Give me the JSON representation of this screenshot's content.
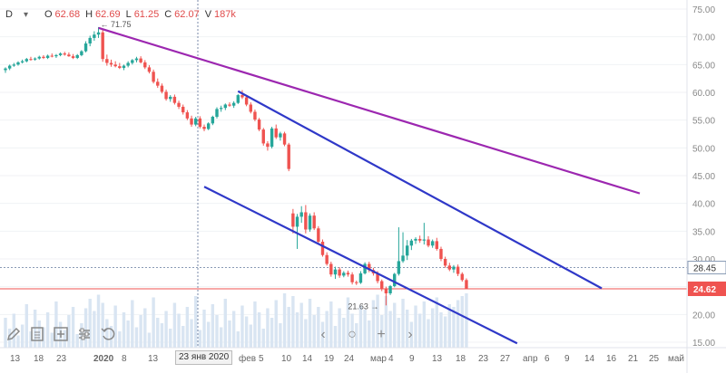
{
  "legend": {
    "symbol": "D",
    "chevron": "chevron-down-icon",
    "open_label": "O",
    "open": "62.68",
    "high_label": "H",
    "high": "62.69",
    "low_label": "L",
    "low": "61.25",
    "close_label": "C",
    "close": "62.07",
    "volume_label": "V",
    "volume": "187k"
  },
  "crosshair_date": "23 янв 2020",
  "toolbar": [
    "pencil-icon",
    "notes-icon",
    "add-indicator-icon",
    "settings-icon",
    "undo-icon"
  ],
  "nav": [
    "chevron-left-icon",
    "reset-icon",
    "zoom-in-icon",
    "chevron-right-icon"
  ],
  "colors": {
    "up": "#26a69a",
    "down": "#ef5350",
    "purple_line": "#9c27b0",
    "channel": "#2f38c8",
    "last_price": "#ef5350",
    "volume": "#d9e5f2"
  },
  "chart_data": {
    "type": "candlestick",
    "ylim": [
      15,
      75
    ],
    "y_ticks": [
      75,
      70,
      65,
      60,
      55,
      50,
      45,
      40,
      35,
      30,
      25,
      20,
      15
    ],
    "x_ticks": [
      "13",
      "18",
      "23",
      "2020",
      "8",
      "13",
      "17",
      "23 янв 2020",
      "фев",
      "5",
      "10",
      "14",
      "19",
      "24",
      "мар",
      "4",
      "9",
      "13",
      "18",
      "23",
      "27",
      "апр",
      "6",
      "9",
      "14",
      "16",
      "21",
      "25",
      "май"
    ],
    "series": [
      {
        "ohlc": [
          [
            64,
            64.5,
            63.5,
            64.3
          ],
          [
            64.3,
            65,
            64,
            64.8
          ],
          [
            64.8,
            65.3,
            64.6,
            65
          ],
          [
            65,
            65.6,
            64.8,
            65.4
          ],
          [
            65.4,
            65.9,
            65.2,
            65.6
          ],
          [
            65.6,
            66.2,
            65.4,
            66
          ],
          [
            66,
            66.4,
            65.7,
            65.9
          ],
          [
            65.9,
            66.3,
            65.7,
            66.1
          ],
          [
            66.1,
            66.6,
            65.9,
            66.4
          ],
          [
            66.4,
            66.7,
            66,
            66.2
          ],
          [
            66.2,
            66.8,
            66,
            66.6
          ],
          [
            66.6,
            67,
            66.3,
            66.5
          ],
          [
            66.5,
            66.9,
            66.2,
            66.7
          ],
          [
            66.7,
            67.2,
            66.5,
            67
          ],
          [
            67,
            67.3,
            66.6,
            66.8
          ],
          [
            66.8,
            67.2,
            66.4,
            66.5
          ],
          [
            66.5,
            66.9,
            66,
            66.2
          ],
          [
            66.2,
            66.9,
            66,
            66.7
          ],
          [
            66.7,
            67.6,
            66.5,
            67.4
          ],
          [
            67.4,
            69.2,
            67.2,
            68.8
          ],
          [
            68.8,
            70.2,
            68.3,
            69.8
          ],
          [
            69.8,
            71,
            69.3,
            70.4
          ],
          [
            70.4,
            71.75,
            69.8,
            70.8
          ],
          [
            70.8,
            71.3,
            65.5,
            66
          ],
          [
            66,
            66.8,
            64.8,
            65.3
          ],
          [
            65.3,
            65.9,
            64.6,
            65
          ],
          [
            65,
            65.6,
            64.5,
            64.7
          ],
          [
            64.7,
            65.3,
            64.2,
            64.4
          ],
          [
            64.4,
            65,
            64,
            64.8
          ],
          [
            64.8,
            65.6,
            64.5,
            65.3
          ],
          [
            65.3,
            66,
            65,
            65.8
          ],
          [
            65.8,
            66.4,
            65.4,
            66.1
          ],
          [
            66.1,
            66.5,
            65.2,
            65.4
          ],
          [
            65.4,
            65.8,
            64.2,
            64.5
          ],
          [
            64.5,
            64.9,
            63.4,
            63.7
          ],
          [
            63.7,
            64.1,
            61.6,
            61.9
          ],
          [
            61.9,
            62.5,
            60.8,
            61.2
          ],
          [
            61.2,
            61.6,
            59.8,
            60.1
          ],
          [
            60.1,
            60.5,
            58.5,
            58.8
          ],
          [
            58.8,
            59.5,
            58.3,
            59.2
          ],
          [
            59.2,
            59.6,
            57.8,
            58.1
          ],
          [
            58.1,
            58.5,
            57,
            57.4
          ],
          [
            57.4,
            57.8,
            56,
            56.4
          ],
          [
            56.4,
            56.8,
            55,
            55.3
          ],
          [
            55.3,
            55.8,
            53.8,
            54.2
          ],
          [
            54.2,
            55.6,
            53.9,
            55.3
          ],
          [
            55.3,
            55.7,
            53.5,
            53.8
          ],
          [
            53.8,
            54.2,
            53,
            53.4
          ],
          [
            53.4,
            54.6,
            53.2,
            54.4
          ],
          [
            54.4,
            55.8,
            54.1,
            55.6
          ],
          [
            55.6,
            57.3,
            55.3,
            57
          ],
          [
            57,
            57.6,
            56.5,
            57.2
          ],
          [
            57.2,
            58,
            56.8,
            57.8
          ],
          [
            57.8,
            58.2,
            57.4,
            57.6
          ],
          [
            57.6,
            58.4,
            57.2,
            58.1
          ],
          [
            58.1,
            59.7,
            57.9,
            59.5
          ],
          [
            59.5,
            60.4,
            58.8,
            59.1
          ],
          [
            59.1,
            59.4,
            57.5,
            57.8
          ],
          [
            57.8,
            58.2,
            56.2,
            56.5
          ],
          [
            56.5,
            56.9,
            54.8,
            55.1
          ],
          [
            55.1,
            55.4,
            53,
            53.3
          ],
          [
            53.3,
            53.6,
            50.4,
            50.8
          ],
          [
            50.8,
            51.2,
            49.5,
            50.2
          ],
          [
            50.2,
            53.8,
            49.9,
            53.5
          ],
          [
            53.5,
            54.2,
            51.6,
            51.9
          ],
          [
            51.9,
            52.9,
            51.3,
            52.6
          ],
          [
            52.6,
            52.9,
            50.3,
            50.6
          ],
          [
            50.6,
            50.9,
            45.8,
            46.2
          ],
          [
            38.2,
            39,
            34.6,
            35.8
          ],
          [
            35.8,
            38.1,
            31.8,
            37.6
          ],
          [
            37.6,
            39.5,
            36.5,
            38.4
          ],
          [
            38.4,
            39.7,
            34.6,
            35.3
          ],
          [
            35.3,
            38.2,
            34.9,
            37.8
          ],
          [
            37.8,
            38.4,
            35.2,
            35.5
          ],
          [
            35.5,
            35.9,
            32.8,
            33.1
          ],
          [
            33.1,
            33.5,
            30.4,
            30.7
          ],
          [
            30.7,
            31.2,
            28.8,
            29.1
          ],
          [
            29.1,
            29.5,
            26.8,
            27.2
          ],
          [
            27.2,
            28.6,
            26.4,
            28.1
          ],
          [
            28.1,
            28.5,
            26.6,
            27
          ],
          [
            27,
            27.8,
            26.7,
            27.5
          ],
          [
            27.5,
            27.9,
            26.8,
            27.2
          ],
          [
            27.2,
            27.6,
            25.4,
            25.8
          ],
          [
            25.8,
            26.1,
            25.3,
            25.7
          ],
          [
            25.7,
            27.8,
            25.5,
            27.4
          ],
          [
            27.4,
            29.4,
            27.2,
            29.1
          ],
          [
            29.1,
            29.5,
            27.6,
            28
          ],
          [
            28,
            28.4,
            27,
            27.4
          ],
          [
            27.4,
            27.8,
            25.6,
            26
          ],
          [
            26,
            26.3,
            24.2,
            24.6
          ],
          [
            24.6,
            25,
            21.63,
            23.8
          ],
          [
            23.8,
            25.3,
            23.5,
            25.1
          ],
          [
            25.1,
            27.5,
            24.9,
            27.3
          ],
          [
            27.3,
            35.7,
            27,
            29.6
          ],
          [
            29.6,
            34.8,
            29.3,
            30.6
          ],
          [
            30.6,
            33.4,
            29.8,
            32.4
          ],
          [
            32.4,
            33.6,
            31.6,
            33.3
          ],
          [
            33.3,
            33.9,
            32.7,
            33.6
          ],
          [
            33.6,
            34.2,
            32.9,
            33.3
          ],
          [
            33.3,
            36.5,
            32.6,
            33.5
          ],
          [
            33.5,
            34.1,
            32.1,
            32.4
          ],
          [
            32.4,
            33.5,
            32,
            33.2
          ],
          [
            33.2,
            33.8,
            31.5,
            31.8
          ],
          [
            31.8,
            32.2,
            29.6,
            30
          ],
          [
            30,
            30.4,
            28.4,
            28.8
          ],
          [
            28.8,
            29.3,
            27.8,
            28.1
          ],
          [
            28.1,
            28.9,
            27.5,
            28.6
          ],
          [
            28.6,
            29,
            26.9,
            27.3
          ],
          [
            27.3,
            27.6,
            25.9,
            26.2
          ],
          [
            26.2,
            26.5,
            24.62,
            24.62
          ]
        ]
      }
    ],
    "volume": [
      22,
      14,
      25,
      9,
      17,
      32,
      12,
      28,
      20,
      15,
      26,
      11,
      34,
      19,
      13,
      24,
      30,
      10,
      18,
      29,
      36,
      27,
      39,
      33,
      21,
      16,
      31,
      12,
      26,
      20,
      35,
      15,
      24,
      29,
      11,
      37,
      22,
      18,
      27,
      14,
      33,
      25,
      16,
      30,
      21,
      38,
      13,
      28,
      19,
      32,
      24,
      15,
      36,
      20,
      27,
      12,
      31,
      23,
      17,
      34,
      26,
      14,
      29,
      22,
      35,
      18,
      40,
      30,
      38,
      26,
      33,
      21,
      36,
      24,
      30,
      19,
      27,
      34,
      16,
      29,
      22,
      37,
      25,
      18,
      31,
      28,
      20,
      35,
      39,
      24,
      38,
      27,
      33,
      22,
      36,
      28,
      19,
      31,
      25,
      34,
      21,
      29,
      37,
      26,
      23,
      32,
      30,
      35,
      38,
      40
    ],
    "annotations": {
      "high_label": "71.75",
      "low_label": "21.63"
    },
    "last_price": 24.62,
    "marker_price": 28.45,
    "trend_lines": [
      {
        "name": "purple-trendline",
        "points": [
          [
            22,
            71.6
          ],
          [
            150,
            41.8
          ]
        ]
      },
      {
        "name": "channel-upper",
        "points": [
          [
            55,
            60.2
          ],
          [
            141,
            24.7
          ]
        ]
      },
      {
        "name": "channel-lower",
        "points": [
          [
            47,
            43.0
          ],
          [
            121,
            14.8
          ]
        ]
      }
    ],
    "grid": true,
    "axis_position": "right"
  }
}
